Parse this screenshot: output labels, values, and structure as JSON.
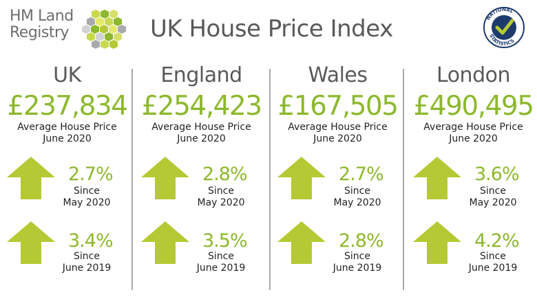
{
  "header": {
    "logo_line1": "HM Land",
    "logo_line2": "Registry",
    "title": "UK House Price Index"
  },
  "columns": [
    {
      "region": "UK",
      "price": "£237,834",
      "caption": "Average House Price",
      "date": "June 2020",
      "monthly": {
        "pct": "2.7%",
        "since": "Since",
        "ref": "May 2020"
      },
      "annual": {
        "pct": "3.4%",
        "since": "Since",
        "ref": "June 2019"
      }
    },
    {
      "region": "England",
      "price": "£254,423",
      "caption": "Average House Price",
      "date": "June 2020",
      "monthly": {
        "pct": "2.8%",
        "since": "Since",
        "ref": "May 2020"
      },
      "annual": {
        "pct": "3.5%",
        "since": "Since",
        "ref": "June 2019"
      }
    },
    {
      "region": "Wales",
      "price": "£167,505",
      "caption": "Average House Price",
      "date": "June 2020",
      "monthly": {
        "pct": "2.7%",
        "since": "Since",
        "ref": "May 2020"
      },
      "annual": {
        "pct": "2.8%",
        "since": "Since",
        "ref": "June 2019"
      }
    },
    {
      "region": "London",
      "price": "£490,495",
      "caption": "Average House Price",
      "date": "June 2020",
      "monthly": {
        "pct": "3.6%",
        "since": "Since",
        "ref": "May 2020"
      },
      "annual": {
        "pct": "4.2%",
        "since": "Since",
        "ref": "June 2019"
      }
    }
  ],
  "badge": {
    "icon": "national-statistics-icon",
    "text": "NATIONAL STATISTICS"
  },
  "colors": {
    "green": "#8cb82d",
    "arrow": "#b5c934",
    "grey_text": "#58595b"
  }
}
